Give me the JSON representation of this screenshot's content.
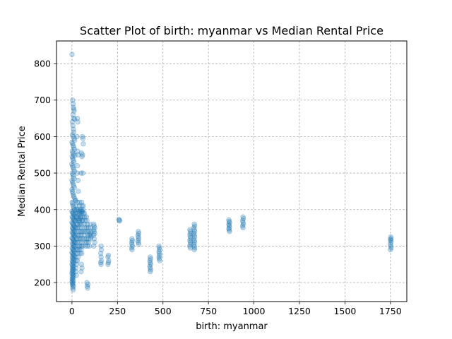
{
  "chart_data": {
    "type": "scatter",
    "title": "Scatter Plot of birth: myanmar vs Median Rental Price",
    "xlabel": "birth: myanmar",
    "ylabel": "Median Rental Price",
    "xlim": [
      -85,
      1840
    ],
    "ylim": [
      148,
      862
    ],
    "xticks": [
      0,
      250,
      500,
      750,
      1000,
      1250,
      1500,
      1750
    ],
    "yticks": [
      200,
      300,
      400,
      500,
      600,
      700,
      800
    ],
    "grid": true,
    "marker_color": "#1f77b4",
    "marker_alpha": 0.25,
    "points": [
      [
        0,
        825
      ],
      [
        4,
        700
      ],
      [
        6,
        690
      ],
      [
        8,
        680
      ],
      [
        10,
        675
      ],
      [
        12,
        670
      ],
      [
        6,
        660
      ],
      [
        9,
        650
      ],
      [
        14,
        648
      ],
      [
        2,
        640
      ],
      [
        5,
        630
      ],
      [
        8,
        620
      ],
      [
        10,
        612
      ],
      [
        3,
        605
      ],
      [
        6,
        600
      ],
      [
        12,
        595
      ],
      [
        15,
        590
      ],
      [
        0,
        585
      ],
      [
        4,
        580
      ],
      [
        7,
        575
      ],
      [
        10,
        570
      ],
      [
        13,
        565
      ],
      [
        2,
        560
      ],
      [
        5,
        555
      ],
      [
        9,
        550
      ],
      [
        16,
        548
      ],
      [
        1,
        545
      ],
      [
        4,
        540
      ],
      [
        8,
        535
      ],
      [
        11,
        530
      ],
      [
        0,
        525
      ],
      [
        3,
        520
      ],
      [
        6,
        515
      ],
      [
        10,
        510
      ],
      [
        14,
        505
      ],
      [
        1,
        500
      ],
      [
        5,
        495
      ],
      [
        8,
        490
      ],
      [
        12,
        485
      ],
      [
        0,
        480
      ],
      [
        3,
        475
      ],
      [
        6,
        470
      ],
      [
        9,
        465
      ],
      [
        13,
        460
      ],
      [
        0,
        455
      ],
      [
        2,
        450
      ],
      [
        5,
        445
      ],
      [
        8,
        440
      ],
      [
        11,
        435
      ],
      [
        15,
        430
      ],
      [
        18,
        425
      ],
      [
        1,
        420
      ],
      [
        4,
        415
      ],
      [
        7,
        410
      ],
      [
        10,
        405
      ],
      [
        13,
        400
      ],
      [
        16,
        398
      ],
      [
        0,
        395
      ],
      [
        3,
        392
      ],
      [
        6,
        390
      ],
      [
        9,
        388
      ],
      [
        12,
        385
      ],
      [
        15,
        382
      ],
      [
        1,
        380
      ],
      [
        4,
        378
      ],
      [
        7,
        375
      ],
      [
        10,
        372
      ],
      [
        13,
        370
      ],
      [
        17,
        368
      ],
      [
        0,
        365
      ],
      [
        3,
        362
      ],
      [
        6,
        360
      ],
      [
        9,
        357
      ],
      [
        12,
        355
      ],
      [
        15,
        352
      ],
      [
        2,
        350
      ],
      [
        5,
        348
      ],
      [
        8,
        345
      ],
      [
        11,
        342
      ],
      [
        14,
        340
      ],
      [
        1,
        338
      ],
      [
        4,
        335
      ],
      [
        7,
        332
      ],
      [
        10,
        330
      ],
      [
        13,
        328
      ],
      [
        16,
        325
      ],
      [
        0,
        322
      ],
      [
        3,
        320
      ],
      [
        6,
        318
      ],
      [
        9,
        315
      ],
      [
        12,
        312
      ],
      [
        15,
        310
      ],
      [
        2,
        308
      ],
      [
        5,
        305
      ],
      [
        8,
        302
      ],
      [
        11,
        300
      ],
      [
        14,
        298
      ],
      [
        1,
        295
      ],
      [
        4,
        292
      ],
      [
        7,
        290
      ],
      [
        10,
        288
      ],
      [
        13,
        285
      ],
      [
        0,
        282
      ],
      [
        3,
        280
      ],
      [
        6,
        277
      ],
      [
        9,
        275
      ],
      [
        12,
        272
      ],
      [
        2,
        270
      ],
      [
        5,
        267
      ],
      [
        8,
        265
      ],
      [
        11,
        262
      ],
      [
        1,
        260
      ],
      [
        4,
        257
      ],
      [
        7,
        255
      ],
      [
        10,
        252
      ],
      [
        0,
        250
      ],
      [
        3,
        247
      ],
      [
        6,
        245
      ],
      [
        9,
        242
      ],
      [
        2,
        240
      ],
      [
        5,
        237
      ],
      [
        8,
        235
      ],
      [
        1,
        232
      ],
      [
        4,
        230
      ],
      [
        7,
        227
      ],
      [
        0,
        225
      ],
      [
        3,
        222
      ],
      [
        6,
        220
      ],
      [
        9,
        217
      ],
      [
        2,
        215
      ],
      [
        5,
        212
      ],
      [
        1,
        210
      ],
      [
        4,
        207
      ],
      [
        7,
        205
      ],
      [
        0,
        202
      ],
      [
        3,
        200
      ],
      [
        6,
        198
      ],
      [
        2,
        195
      ],
      [
        5,
        192
      ],
      [
        8,
        190
      ],
      [
        4,
        185
      ],
      [
        7,
        180
      ],
      [
        20,
        425
      ],
      [
        22,
        410
      ],
      [
        25,
        400
      ],
      [
        20,
        390
      ],
      [
        24,
        380
      ],
      [
        22,
        370
      ],
      [
        26,
        360
      ],
      [
        20,
        350
      ],
      [
        23,
        340
      ],
      [
        21,
        330
      ],
      [
        25,
        320
      ],
      [
        20,
        310
      ],
      [
        22,
        300
      ],
      [
        24,
        290
      ],
      [
        21,
        280
      ],
      [
        20,
        270
      ],
      [
        23,
        260
      ],
      [
        25,
        250
      ],
      [
        22,
        240
      ],
      [
        20,
        230
      ],
      [
        24,
        220
      ],
      [
        30,
        650
      ],
      [
        32,
        640
      ],
      [
        28,
        600
      ],
      [
        31,
        560
      ],
      [
        34,
        550
      ],
      [
        30,
        520
      ],
      [
        29,
        500
      ],
      [
        33,
        480
      ],
      [
        35,
        450
      ],
      [
        30,
        420
      ],
      [
        32,
        400
      ],
      [
        34,
        395
      ],
      [
        36,
        390
      ],
      [
        30,
        380
      ],
      [
        33,
        375
      ],
      [
        35,
        370
      ],
      [
        31,
        360
      ],
      [
        30,
        350
      ],
      [
        34,
        340
      ],
      [
        36,
        330
      ],
      [
        32,
        320
      ],
      [
        30,
        310
      ],
      [
        35,
        300
      ],
      [
        33,
        290
      ],
      [
        31,
        280
      ],
      [
        34,
        270
      ],
      [
        30,
        260
      ],
      [
        42,
        420
      ],
      [
        40,
        410
      ],
      [
        44,
        400
      ],
      [
        46,
        395
      ],
      [
        42,
        390
      ],
      [
        40,
        385
      ],
      [
        45,
        380
      ],
      [
        43,
        375
      ],
      [
        41,
        370
      ],
      [
        44,
        365
      ],
      [
        42,
        360
      ],
      [
        40,
        350
      ],
      [
        45,
        340
      ],
      [
        43,
        330
      ],
      [
        41,
        320
      ],
      [
        44,
        310
      ],
      [
        42,
        300
      ],
      [
        40,
        290
      ],
      [
        45,
        280
      ],
      [
        52,
        555
      ],
      [
        55,
        545
      ],
      [
        50,
        500
      ],
      [
        53,
        420
      ],
      [
        55,
        410
      ],
      [
        51,
        400
      ],
      [
        54,
        395
      ],
      [
        52,
        390
      ],
      [
        50,
        380
      ],
      [
        55,
        370
      ],
      [
        53,
        360
      ],
      [
        51,
        350
      ],
      [
        54,
        340
      ],
      [
        52,
        330
      ],
      [
        50,
        320
      ],
      [
        55,
        310
      ],
      [
        53,
        300
      ],
      [
        51,
        290
      ],
      [
        54,
        280
      ],
      [
        52,
        250
      ],
      [
        55,
        240
      ],
      [
        50,
        230
      ],
      [
        58,
        600
      ],
      [
        60,
        595
      ],
      [
        62,
        580
      ],
      [
        58,
        550
      ],
      [
        60,
        500
      ],
      [
        62,
        410
      ],
      [
        60,
        400
      ],
      [
        58,
        395
      ],
      [
        62,
        390
      ],
      [
        60,
        380
      ],
      [
        58,
        370
      ],
      [
        62,
        340
      ],
      [
        60,
        320
      ],
      [
        58,
        300
      ],
      [
        68,
        390
      ],
      [
        70,
        380
      ],
      [
        72,
        370
      ],
      [
        68,
        360
      ],
      [
        70,
        350
      ],
      [
        72,
        340
      ],
      [
        68,
        330
      ],
      [
        70,
        320
      ],
      [
        75,
        310
      ],
      [
        73,
        300
      ],
      [
        80,
        380
      ],
      [
        82,
        370
      ],
      [
        84,
        360
      ],
      [
        80,
        350
      ],
      [
        82,
        340
      ],
      [
        85,
        330
      ],
      [
        80,
        320
      ],
      [
        82,
        310
      ],
      [
        85,
        300
      ],
      [
        82,
        200
      ],
      [
        84,
        190
      ],
      [
        86,
        185
      ],
      [
        88,
        195
      ],
      [
        90,
        350
      ],
      [
        92,
        340
      ],
      [
        95,
        330
      ],
      [
        90,
        320
      ],
      [
        92,
        310
      ],
      [
        95,
        300
      ],
      [
        100,
        360
      ],
      [
        102,
        350
      ],
      [
        105,
        340
      ],
      [
        100,
        335
      ],
      [
        103,
        330
      ],
      [
        105,
        325
      ],
      [
        100,
        320
      ],
      [
        120,
        360
      ],
      [
        122,
        355
      ],
      [
        125,
        350
      ],
      [
        120,
        345
      ],
      [
        122,
        340
      ],
      [
        125,
        335
      ],
      [
        120,
        330
      ],
      [
        122,
        320
      ],
      [
        125,
        310
      ],
      [
        120,
        300
      ],
      [
        160,
        300
      ],
      [
        162,
        290
      ],
      [
        158,
        280
      ],
      [
        160,
        270
      ],
      [
        162,
        260
      ],
      [
        158,
        255
      ],
      [
        160,
        250
      ],
      [
        200,
        275
      ],
      [
        198,
        270
      ],
      [
        202,
        260
      ],
      [
        200,
        255
      ],
      [
        198,
        250
      ],
      [
        258,
        373
      ],
      [
        260,
        371
      ],
      [
        262,
        369
      ],
      [
        330,
        320
      ],
      [
        332,
        315
      ],
      [
        328,
        310
      ],
      [
        330,
        305
      ],
      [
        332,
        300
      ],
      [
        328,
        295
      ],
      [
        330,
        290
      ],
      [
        365,
        340
      ],
      [
        367,
        335
      ],
      [
        363,
        330
      ],
      [
        365,
        325
      ],
      [
        367,
        320
      ],
      [
        363,
        315
      ],
      [
        365,
        310
      ],
      [
        367,
        305
      ],
      [
        430,
        270
      ],
      [
        432,
        265
      ],
      [
        428,
        260
      ],
      [
        430,
        255
      ],
      [
        432,
        250
      ],
      [
        428,
        245
      ],
      [
        430,
        240
      ],
      [
        432,
        235
      ],
      [
        430,
        230
      ],
      [
        478,
        300
      ],
      [
        480,
        295
      ],
      [
        482,
        290
      ],
      [
        478,
        285
      ],
      [
        480,
        280
      ],
      [
        482,
        275
      ],
      [
        478,
        270
      ],
      [
        480,
        265
      ],
      [
        482,
        260
      ],
      [
        648,
        345
      ],
      [
        650,
        340
      ],
      [
        652,
        335
      ],
      [
        648,
        330
      ],
      [
        650,
        325
      ],
      [
        652,
        320
      ],
      [
        648,
        315
      ],
      [
        650,
        310
      ],
      [
        652,
        305
      ],
      [
        648,
        300
      ],
      [
        650,
        295
      ],
      [
        672,
        360
      ],
      [
        674,
        355
      ],
      [
        670,
        350
      ],
      [
        672,
        345
      ],
      [
        674,
        340
      ],
      [
        670,
        335
      ],
      [
        672,
        330
      ],
      [
        674,
        325
      ],
      [
        670,
        320
      ],
      [
        672,
        315
      ],
      [
        674,
        310
      ],
      [
        670,
        305
      ],
      [
        672,
        300
      ],
      [
        674,
        295
      ],
      [
        672,
        290
      ],
      [
        862,
        372
      ],
      [
        864,
        368
      ],
      [
        866,
        364
      ],
      [
        862,
        360
      ],
      [
        864,
        356
      ],
      [
        866,
        352
      ],
      [
        862,
        348
      ],
      [
        864,
        344
      ],
      [
        866,
        340
      ],
      [
        940,
        380
      ],
      [
        942,
        375
      ],
      [
        938,
        370
      ],
      [
        940,
        365
      ],
      [
        942,
        360
      ],
      [
        938,
        355
      ],
      [
        940,
        350
      ],
      [
        1752,
        325
      ],
      [
        1754,
        320
      ],
      [
        1750,
        318
      ],
      [
        1752,
        315
      ],
      [
        1754,
        310
      ],
      [
        1750,
        305
      ],
      [
        1752,
        300
      ],
      [
        1754,
        295
      ],
      [
        1750,
        290
      ]
    ]
  }
}
